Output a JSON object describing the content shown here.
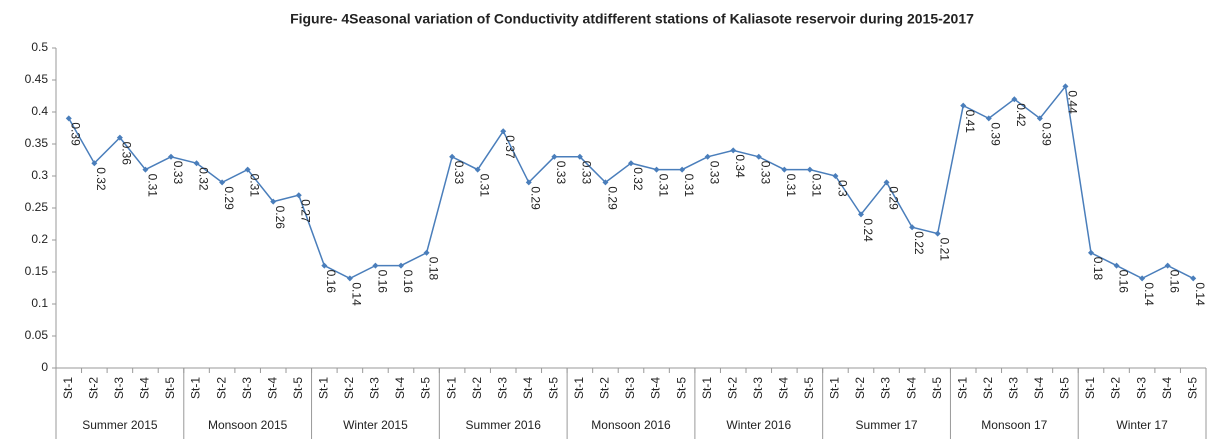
{
  "chart_data": {
    "type": "line",
    "title": "Figure- 4Seasonal variation of Conductivity atdifferent stations of Kaliasote reservoir during 2015-2017",
    "categories": [
      "St-1",
      "St-2",
      "St-3",
      "St-4",
      "St-5",
      "St-1",
      "St-2",
      "St-3",
      "St-4",
      "St-5",
      "St-1",
      "St-2",
      "St-3",
      "St-4",
      "St-5",
      "St-1",
      "St-2",
      "St-3",
      "St-4",
      "St-5",
      "St-1",
      "St-2",
      "St-3",
      "St-4",
      "St-5",
      "St-1",
      "St-2",
      "St-3",
      "St-4",
      "St-5",
      "St-1",
      "St-2",
      "St-3",
      "St-4",
      "St-5",
      "St-1",
      "St-2",
      "St-3",
      "St-4",
      "St-5",
      "St-1",
      "St-2",
      "St-3",
      "St-4",
      "St-5"
    ],
    "groups": [
      "Summer 2015",
      "Monsoon 2015",
      "Winter 2015",
      "Summer 2016",
      "Monsoon 2016",
      "Winter 2016",
      "Summer 17",
      "Monsoon 17",
      "Winter 17"
    ],
    "series": [
      {
        "name": "Conductivity",
        "color": "#4a7ebb",
        "values": [
          0.39,
          0.32,
          0.36,
          0.31,
          0.33,
          0.32,
          0.29,
          0.31,
          0.26,
          0.27,
          0.16,
          0.14,
          0.16,
          0.16,
          0.18,
          0.33,
          0.31,
          0.37,
          0.29,
          0.33,
          0.33,
          0.29,
          0.32,
          0.31,
          0.31,
          0.33,
          0.34,
          0.33,
          0.31,
          0.31,
          0.3,
          0.24,
          0.29,
          0.22,
          0.21,
          0.41,
          0.39,
          0.42,
          0.39,
          0.44,
          0.18,
          0.16,
          0.14,
          0.16,
          0.14
        ]
      }
    ],
    "ylim": [
      0,
      0.5
    ],
    "yticks": [
      0,
      0.05,
      0.1,
      0.15,
      0.2,
      0.25,
      0.3,
      0.35,
      0.4,
      0.45,
      0.5
    ]
  }
}
